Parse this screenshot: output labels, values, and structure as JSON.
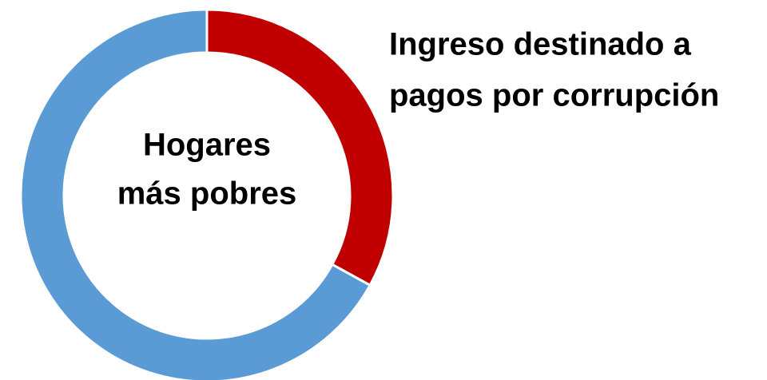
{
  "chart_data": {
    "type": "donut",
    "title": [
      "Ingreso destinado a",
      "pagos por corrupción"
    ],
    "center_label": [
      "Hogares",
      "más pobres"
    ],
    "categories": [
      null,
      null
    ],
    "values": [
      33,
      67
    ],
    "colors": [
      "#c00000",
      "#5b9bd5"
    ]
  }
}
